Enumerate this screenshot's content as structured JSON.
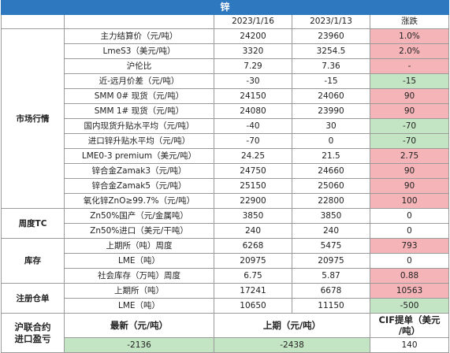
{
  "title": "锌",
  "columns": {
    "date1": "2023/1/16",
    "date2": "2023/1/13",
    "change": "涨跌"
  },
  "categories": {
    "market": "市场行情",
    "tc": "周度TC",
    "inventory": "库存",
    "warrants": "注册仓单",
    "import": "沪联合约进口盈亏"
  },
  "rows": [
    {
      "label": "主力结算价（元/吨）",
      "v1": "24200",
      "v2": "23960",
      "chg": "1.0%",
      "dir": "pos"
    },
    {
      "label": "LmeS3（美元/吨）",
      "v1": "3320",
      "v2": "3254.5",
      "chg": "2.0%",
      "dir": "pos"
    },
    {
      "label": "沪伦比",
      "v1": "7.29",
      "v2": "7.36",
      "chg": "-",
      "dir": "pos"
    },
    {
      "label": "近-远月价差（元/吨）",
      "v1": "-30",
      "v2": "-15",
      "chg": "-15",
      "dir": "neg"
    },
    {
      "label": "SMM 0# 现货（元/吨）",
      "v1": "24150",
      "v2": "24060",
      "chg": "90",
      "dir": "pos"
    },
    {
      "label": "SMM 1# 现货（元/吨）",
      "v1": "24080",
      "v2": "23990",
      "chg": "90",
      "dir": "pos"
    },
    {
      "label": "国内现货升贴水平均（元/吨）",
      "v1": "-40",
      "v2": "30",
      "chg": "-70",
      "dir": "neg"
    },
    {
      "label": "进口锌升贴水平均（元/吨）",
      "v1": "-70",
      "v2": "0",
      "chg": "-70",
      "dir": "neg"
    },
    {
      "label": "LME0-3 premium（美元/吨）",
      "v1": "24.25",
      "v2": "21.5",
      "chg": "2.75",
      "dir": "pos"
    },
    {
      "label": "锌合金Zamak3（元/吨）",
      "v1": "24750",
      "v2": "24660",
      "chg": "90",
      "dir": "pos"
    },
    {
      "label": "锌合金Zamak5（元/吨）",
      "v1": "25150",
      "v2": "25060",
      "chg": "90",
      "dir": "pos"
    },
    {
      "label": "氧化锌ZnO≥99.7%（元/吨）",
      "v1": "22900",
      "v2": "22800",
      "chg": "100",
      "dir": "pos"
    },
    {
      "label": "Zn50%国产（元/金属吨）",
      "v1": "3850",
      "v2": "3850",
      "chg": "0",
      "dir": "none"
    },
    {
      "label": "Zn50%进口（美元/干吨）",
      "v1": "240",
      "v2": "240",
      "chg": "0",
      "dir": "none"
    },
    {
      "label": "上期所（吨）周度",
      "v1": "6268",
      "v2": "5475",
      "chg": "793",
      "dir": "pos"
    },
    {
      "label": "LME（吨）",
      "v1": "20975",
      "v2": "20975",
      "chg": "0",
      "dir": "none"
    },
    {
      "label": "社会库存（万吨）周度",
      "v1": "6.75",
      "v2": "5.87",
      "chg": "0.88",
      "dir": "pos"
    },
    {
      "label": "上期所（吨）",
      "v1": "17241",
      "v2": "6678",
      "chg": "10563",
      "dir": "pos"
    },
    {
      "label": "LME（吨）",
      "v1": "10650",
      "v2": "11150",
      "chg": "-500",
      "dir": "neg"
    }
  ],
  "import_section": {
    "h_latest": "最新（元/吨）",
    "h_prev": "上期（元/吨）",
    "h_cif": "CIF提单（美元/吨）",
    "latest": "-2136",
    "prev": "-2438",
    "cif": "140"
  }
}
